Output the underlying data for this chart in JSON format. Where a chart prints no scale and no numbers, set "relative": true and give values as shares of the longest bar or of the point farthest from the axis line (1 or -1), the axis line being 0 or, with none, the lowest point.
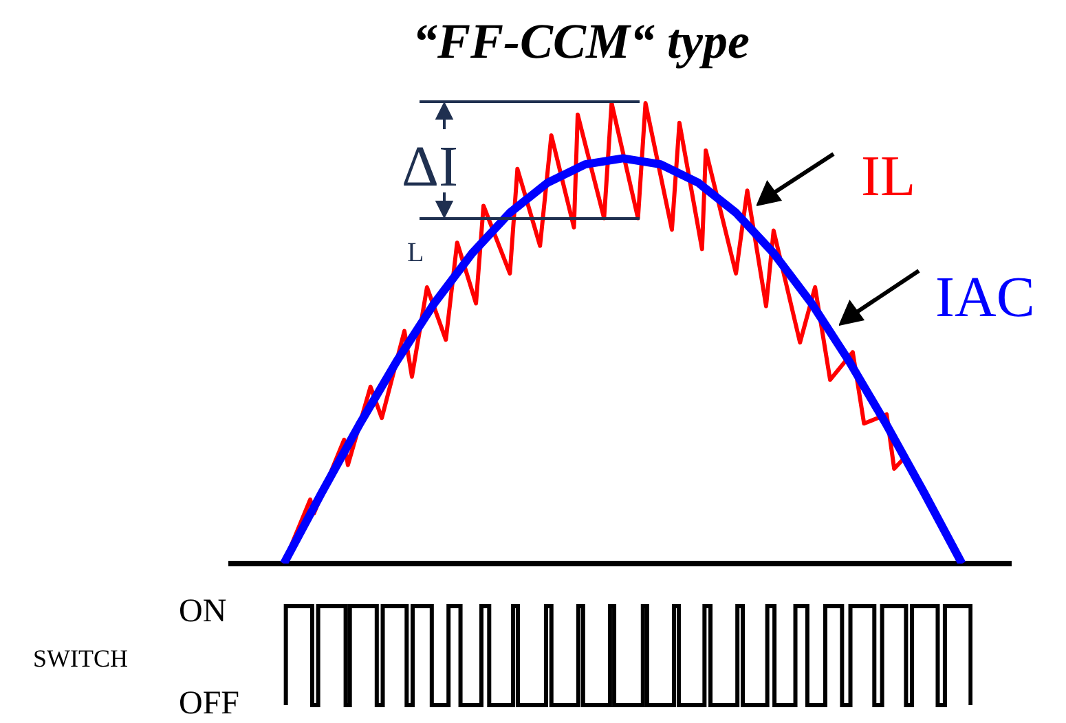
{
  "chart_data": {
    "type": "line",
    "title": "“FF-CCM“ type",
    "relative": true,
    "tick_labels": false,
    "grid": false,
    "legend": "right",
    "marker": "none",
    "annotations": [
      "ΔI",
      "L",
      "ON",
      "SWITCH",
      "OFF"
    ],
    "categories": [
      null,
      null,
      null,
      null,
      null,
      null,
      null,
      null,
      null,
      null,
      null,
      null,
      null,
      null,
      null,
      null,
      null,
      null,
      null,
      null,
      null,
      null,
      null,
      null,
      null,
      null,
      null,
      null,
      null,
      null,
      null,
      null,
      null,
      null,
      null,
      null,
      null,
      null,
      null,
      null,
      null,
      null,
      null,
      null,
      null,
      null,
      null,
      null,
      null,
      null,
      null,
      null,
      null,
      null,
      null,
      null,
      null,
      null,
      null,
      null,
      null,
      null,
      null,
      null,
      null,
      null,
      null,
      null,
      null,
      null,
      null,
      null,
      null,
      null,
      null,
      null,
      null,
      null,
      null,
      null,
      null,
      null,
      null,
      null,
      null,
      null,
      null,
      null,
      null,
      null,
      null,
      null,
      null,
      null,
      null,
      null,
      null,
      null,
      null,
      null,
      null,
      null,
      null,
      null,
      null,
      null,
      null,
      null,
      null,
      null,
      null,
      null,
      null,
      null,
      null,
      null,
      null,
      null,
      null,
      null,
      null,
      null,
      null,
      null,
      null,
      null,
      null,
      null,
      null,
      null,
      null,
      null,
      null,
      null,
      null,
      null,
      null,
      null,
      null,
      null,
      null,
      null,
      null,
      null,
      null,
      null,
      null,
      null,
      null,
      null,
      null,
      null,
      null,
      null,
      null,
      null,
      null,
      null,
      null,
      null,
      null,
      null,
      null,
      null,
      null,
      null,
      null,
      null,
      null,
      null,
      null,
      null,
      null,
      null,
      null,
      null,
      null,
      null,
      null,
      null,
      null,
      null,
      null,
      null,
      null,
      null,
      null,
      null,
      null,
      null,
      null,
      null,
      null,
      null,
      null,
      null,
      null,
      null,
      null,
      null,
      null,
      null,
      null,
      null,
      null,
      null,
      null,
      null
    ],
    "series": [
      {
        "name": "IL",
        "color": "#ff0000",
        "values": [
          null,
          null,
          null,
          null,
          null,
          null,
          null,
          null,
          null,
          null,
          null,
          null,
          null,
          null,
          0,
          null,
          null,
          null,
          null,
          null,
          null,
          0.139,
          0.109,
          null,
          null,
          null,
          null,
          null,
          null,
          null,
          0.269,
          0.214,
          null,
          null,
          null,
          null,
          null,
          0.384,
          null,
          null,
          0.316,
          null,
          null,
          null,
          null,
          null,
          0.505,
          null,
          0.406,
          null,
          null,
          null,
          0.6,
          null,
          null,
          null,
          null,
          0.486,
          null,
          null,
          0.697,
          null,
          null,
          null,
          null,
          0.565,
          null,
          0.777,
          null,
          null,
          null,
          null,
          null,
          null,
          0.63,
          null,
          0.857,
          null,
          null,
          null,
          null,
          null,
          0.69,
          null,
          null,
          0.93,
          null,
          null,
          null,
          null,
          null,
          0.73,
          0.975,
          null,
          null,
          null,
          null,
          null,
          null,
          0.75,
          null,
          1,
          null,
          null,
          null,
          null,
          null,
          null,
          0.75,
          null,
          1,
          null,
          null,
          null,
          null,
          null,
          null,
          0.725,
          null,
          0.957,
          null,
          null,
          null,
          null,
          null,
          0.683,
          0.897,
          null,
          null,
          null,
          null,
          null,
          null,
          null,
          0.63,
          null,
          null,
          0.81,
          null,
          null,
          null,
          null,
          0.559,
          null,
          0.723,
          null,
          null,
          null,
          null,
          null,
          null,
          0.48,
          null,
          null,
          null,
          0.6,
          null,
          null,
          null,
          0.399,
          null,
          null,
          null,
          null,
          null,
          0.459,
          null,
          null,
          0.304,
          null,
          null,
          null,
          null,
          null,
          0.324,
          null,
          0.206,
          null,
          null,
          0.232,
          null,
          null,
          null,
          null,
          null,
          null,
          null,
          null,
          null,
          null,
          null,
          null,
          null,
          null,
          0,
          null,
          null,
          null,
          null,
          null,
          null,
          null,
          null,
          null,
          null,
          null,
          null,
          null
        ]
      },
      {
        "name": "IAC",
        "color": "#0000ff",
        "values": [
          null,
          null,
          null,
          null,
          null,
          null,
          null,
          null,
          null,
          null,
          null,
          null,
          null,
          null,
          0,
          null,
          null,
          null,
          null,
          null,
          null,
          null,
          null,
          null,
          0.153,
          null,
          null,
          null,
          null,
          null,
          null,
          null,
          null,
          null,
          0.301,
          null,
          null,
          null,
          null,
          null,
          null,
          null,
          null,
          null,
          0.44,
          null,
          null,
          null,
          null,
          null,
          null,
          null,
          null,
          null,
          0.566,
          null,
          null,
          null,
          null,
          null,
          null,
          null,
          null,
          null,
          0.674,
          null,
          null,
          null,
          null,
          null,
          null,
          null,
          null,
          null,
          0.762,
          null,
          null,
          null,
          null,
          null,
          null,
          null,
          null,
          null,
          0.827,
          null,
          null,
          null,
          null,
          null,
          null,
          null,
          null,
          null,
          0.867,
          null,
          null,
          null,
          null,
          null,
          null,
          null,
          null,
          null,
          0.88,
          null,
          null,
          null,
          null,
          null,
          null,
          null,
          null,
          null,
          0.867,
          null,
          null,
          null,
          null,
          null,
          null,
          null,
          null,
          null,
          0.827,
          null,
          null,
          null,
          null,
          null,
          null,
          null,
          null,
          null,
          0.762,
          null,
          null,
          null,
          null,
          null,
          null,
          null,
          null,
          null,
          0.674,
          null,
          null,
          null,
          null,
          null,
          null,
          null,
          null,
          null,
          0.566,
          null,
          null,
          null,
          null,
          null,
          null,
          null,
          null,
          null,
          0.44,
          null,
          null,
          null,
          null,
          null,
          null,
          null,
          null,
          null,
          0.301,
          null,
          null,
          null,
          null,
          null,
          null,
          null,
          null,
          null,
          0.153,
          null,
          null,
          null,
          null,
          null,
          null,
          null,
          null,
          null,
          0,
          null,
          null,
          null,
          null,
          null,
          null,
          null,
          null,
          null,
          null,
          null,
          null,
          null
        ]
      }
    ]
  }
}
